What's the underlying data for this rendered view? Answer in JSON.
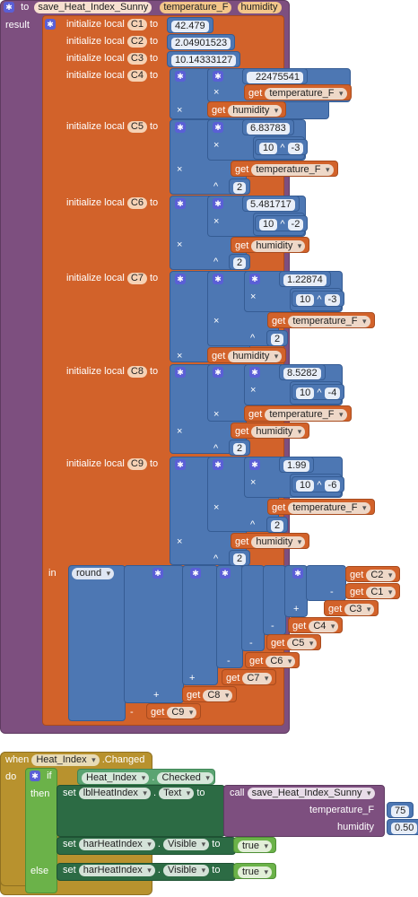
{
  "procedure": {
    "to": "to",
    "name": "save_Heat_Index_Sunny",
    "params": [
      "temperature_F",
      "humidity"
    ],
    "result": "result"
  },
  "locals": {
    "init": "initialize local",
    "to": "to",
    "c1": {
      "name": "C1",
      "value": "42.479"
    },
    "c2": {
      "name": "C2",
      "value": "2.04901523"
    },
    "c3": {
      "name": "C3",
      "value": "10.14333127"
    },
    "c4": {
      "name": "C4",
      "value": "22475541"
    },
    "c5": {
      "name": "C5",
      "value": "6.83783"
    },
    "c6": {
      "name": "C6",
      "value": "5.481717"
    },
    "c7": {
      "name": "C7",
      "value": "1.22874"
    },
    "c8": {
      "name": "C8",
      "value": "8.5282"
    },
    "c9": {
      "name": "C9",
      "value": "1.99"
    }
  },
  "ops": {
    "times": "×",
    "pow": "^",
    "plus": "+",
    "minus": "-",
    "get": "get",
    "ten": "10",
    "two": "2",
    "exp_c5": "-3",
    "exp_c6": "-2",
    "exp_c7": "-3",
    "exp_c8": "-4",
    "exp_c9": "-6",
    "in": "in",
    "round": "round"
  },
  "vars": {
    "temperature_F": "temperature_F",
    "humidity": "humidity",
    "C1": "C1",
    "C2": "C2",
    "C3": "C3",
    "C4": "C4",
    "C5": "C5",
    "C6": "C6",
    "C7": "C7",
    "C8": "C8",
    "C9": "C9"
  },
  "event": {
    "when": "when",
    "component": "Heat_Index",
    "event": ".Changed",
    "do": "do",
    "if": "if",
    "cond_component": "Heat_Index",
    "cond_prop": "Checked",
    "then": "then",
    "else": "else",
    "set": "set",
    "to": "to",
    "lbl": "lblHeatIndex",
    "text": "Text",
    "call": "call",
    "call_name": "save_Heat_Index_Sunny",
    "arg_temp": "temperature_F",
    "arg_temp_val": "75",
    "arg_hum": "humidity",
    "arg_hum_val": "0.50",
    "har": "harHeatIndex",
    "visible": "Visible",
    "true1": "true",
    "true2": "true"
  },
  "colors": {
    "procedure": "#7d4f7f",
    "variables": "#d2622a",
    "math": "#4d77b3",
    "event": "#b8922e",
    "component_setter": "#2c6b44",
    "logic": "#6bb249"
  }
}
